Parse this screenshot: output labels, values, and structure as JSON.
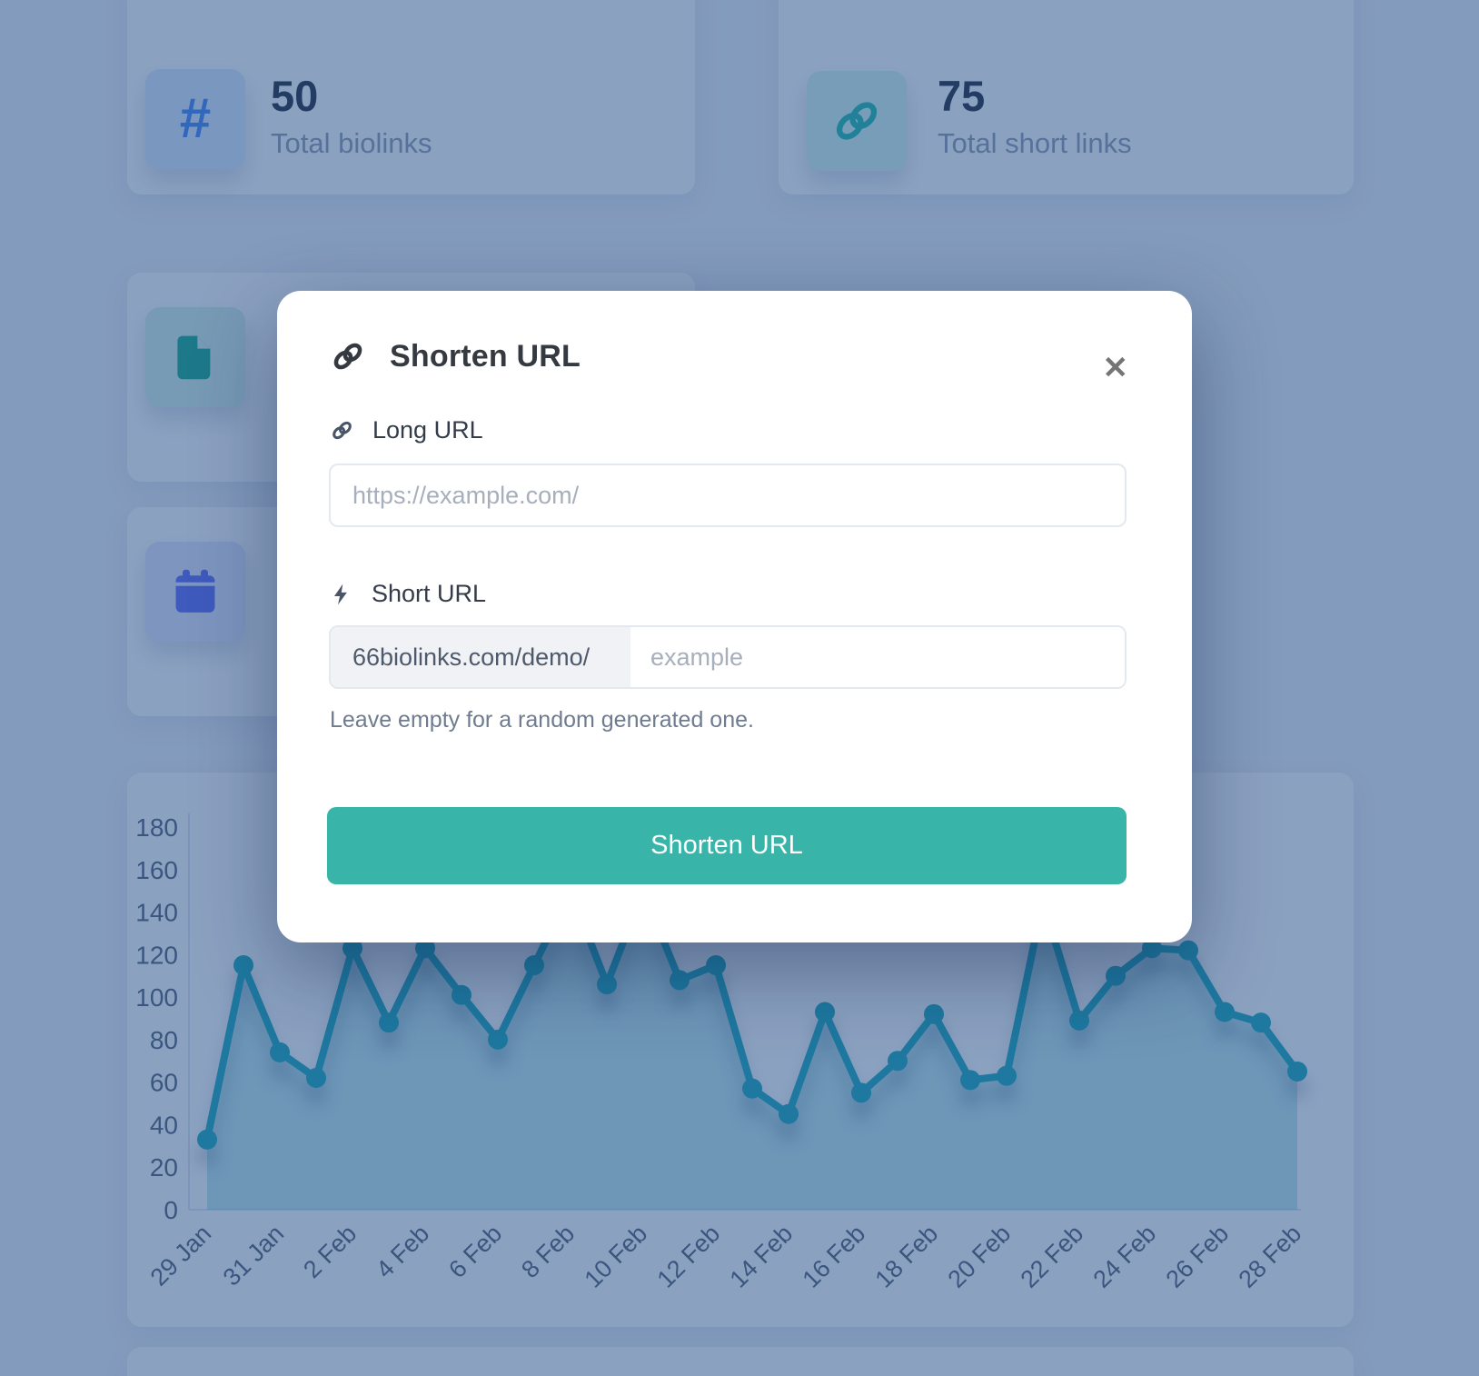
{
  "stats": [
    {
      "value": "50",
      "label": "Total biolinks",
      "icon": "hashtag-icon",
      "icon_glyph": "#",
      "icon_color": "#3b82f6",
      "tile_color": "#d9e8ff"
    },
    {
      "value": "75",
      "label": "Total short links",
      "icon": "link-icon",
      "icon_color": "#14b8a6",
      "tile_color": "#d6f5f0"
    }
  ],
  "side_cards": [
    {
      "icon": "document-icon",
      "icon_color": "#0da487",
      "tile_color": "#d2efe7"
    },
    {
      "icon": "calendar-icon",
      "icon_color": "#5463f8",
      "tile_color": "#dfe4fd"
    }
  ],
  "modal": {
    "title": "Shorten URL",
    "close_glyph": "✕",
    "long_url": {
      "label": "Long URL",
      "placeholder": "https://example.com/",
      "value": ""
    },
    "short_url": {
      "label": "Short URL",
      "prefix": "66biolinks.com/demo/",
      "placeholder": "example",
      "value": "",
      "help": "Leave empty for a random generated one."
    },
    "submit_label": "Shorten URL"
  },
  "chart_data": {
    "type": "line",
    "title": "",
    "xlabel": "",
    "ylabel": "",
    "categories": [
      "29 Jan",
      "30 Jan",
      "31 Jan",
      "1 Feb",
      "2 Feb",
      "3 Feb",
      "4 Feb",
      "5 Feb",
      "6 Feb",
      "7 Feb",
      "8 Feb",
      "9 Feb",
      "10 Feb",
      "11 Feb",
      "12 Feb",
      "13 Feb",
      "14 Feb",
      "15 Feb",
      "16 Feb",
      "17 Feb",
      "18 Feb",
      "19 Feb",
      "20 Feb",
      "21 Feb",
      "22 Feb",
      "23 Feb",
      "24 Feb",
      "25 Feb",
      "26 Feb",
      "27 Feb",
      "28 Feb"
    ],
    "values": [
      33,
      115,
      74,
      62,
      123,
      88,
      123,
      101,
      80,
      115,
      150,
      106,
      150,
      108,
      115,
      57,
      45,
      93,
      55,
      70,
      92,
      61,
      63,
      145,
      89,
      110,
      123,
      122,
      93,
      88,
      65
    ],
    "x_tick_labels": [
      "29 Jan",
      "31 Jan",
      "2 Feb",
      "4 Feb",
      "6 Feb",
      "8 Feb",
      "10 Feb",
      "12 Feb",
      "14 Feb",
      "16 Feb",
      "18 Feb",
      "20 Feb",
      "22 Feb",
      "24 Feb",
      "26 Feb",
      "28 Feb"
    ],
    "y_ticks": [
      0,
      20,
      40,
      60,
      80,
      100,
      120,
      140,
      160,
      180
    ],
    "ylim": [
      0,
      180
    ],
    "grid": false,
    "legend": "none",
    "line_color": "#0ea5b7",
    "fill_color": "rgba(14,165,183,0.28)",
    "point_radius": 11,
    "axis_text_color": "#4c5a70"
  },
  "colors": {
    "backdrop_overlay": "rgba(44,84,140,0.55)",
    "accent_teal": "#38b4a8",
    "accent_blue": "#3b82f6",
    "modal_bg": "#ffffff",
    "page_bg": "#eef1f7"
  }
}
